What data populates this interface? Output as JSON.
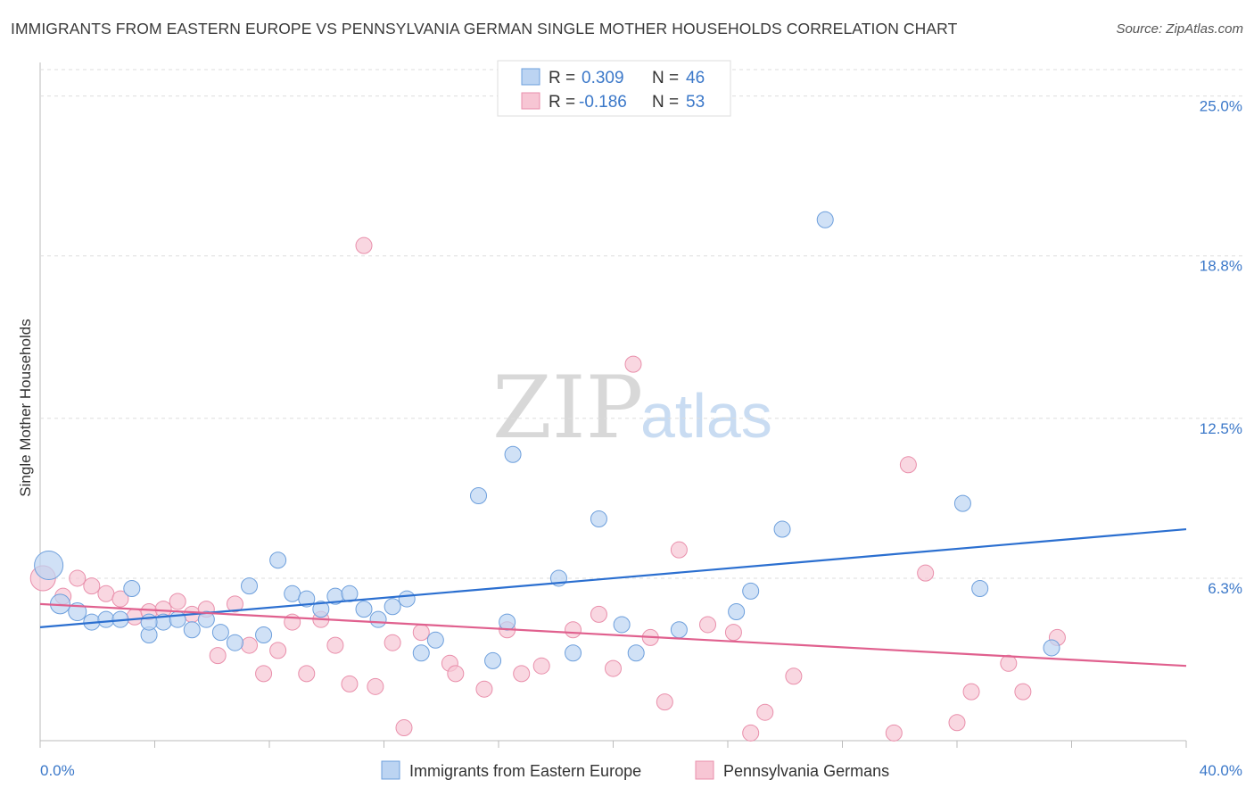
{
  "header": {
    "title": "IMMIGRANTS FROM EASTERN EUROPE VS PENNSYLVANIA GERMAN SINGLE MOTHER HOUSEHOLDS CORRELATION CHART",
    "source": "Source: ZipAtlas.com"
  },
  "watermark": {
    "zip": "ZIP",
    "atlas": "atlas"
  },
  "legend": {
    "rows": [
      {
        "r_label": "R = ",
        "r_value": "0.309",
        "n_label": "N = ",
        "n_value": "46"
      },
      {
        "r_label": "R = ",
        "r_value": "-0.186",
        "n_label": "N = ",
        "n_value": "53"
      }
    ]
  },
  "bottom_legend": {
    "items": [
      {
        "label": "Immigrants from Eastern Europe"
      },
      {
        "label": "Pennsylvania Germans"
      }
    ]
  },
  "colors": {
    "blue_fill": "#bcd4f2",
    "blue_stroke": "#6d9fdc",
    "blue_line": "#2b6fd0",
    "pink_fill": "#f7c6d4",
    "pink_stroke": "#e98fab",
    "pink_line": "#e0608e",
    "grid": "#dddddd",
    "axis_text": "#3b78c9"
  },
  "chart_data": {
    "type": "scatter",
    "title": "IMMIGRANTS FROM EASTERN EUROPE VS PENNSYLVANIA GERMAN SINGLE MOTHER HOUSEHOLDS CORRELATION CHART",
    "xlabel": "",
    "ylabel": "Single Mother Households",
    "xlim": [
      0,
      40
    ],
    "ylim": [
      0,
      26.3
    ],
    "x_tick_labels": [
      "0.0%",
      "40.0%"
    ],
    "y_ticks": [
      6.3,
      12.5,
      18.8,
      25.0
    ],
    "y_tick_labels": [
      "6.3%",
      "12.5%",
      "18.8%",
      "25.0%"
    ],
    "series": [
      {
        "name": "Immigrants from Eastern Europe",
        "color": "blue",
        "trend": {
          "x": [
            0,
            40
          ],
          "y": [
            4.4,
            8.2
          ]
        },
        "points": [
          {
            "x": 0.3,
            "y": 6.8,
            "s": 16
          },
          {
            "x": 0.7,
            "y": 5.3,
            "s": 11
          },
          {
            "x": 1.3,
            "y": 5.0,
            "s": 10
          },
          {
            "x": 1.8,
            "y": 4.6,
            "s": 9
          },
          {
            "x": 2.3,
            "y": 4.7,
            "s": 9
          },
          {
            "x": 2.8,
            "y": 4.7,
            "s": 9
          },
          {
            "x": 3.2,
            "y": 5.9,
            "s": 9
          },
          {
            "x": 3.8,
            "y": 4.1,
            "s": 9
          },
          {
            "x": 4.3,
            "y": 4.6,
            "s": 9
          },
          {
            "x": 4.8,
            "y": 4.7,
            "s": 9
          },
          {
            "x": 5.3,
            "y": 4.3,
            "s": 9
          },
          {
            "x": 5.8,
            "y": 4.7,
            "s": 9
          },
          {
            "x": 6.3,
            "y": 4.2,
            "s": 9
          },
          {
            "x": 6.8,
            "y": 3.8,
            "s": 9
          },
          {
            "x": 7.3,
            "y": 6.0,
            "s": 9
          },
          {
            "x": 7.8,
            "y": 4.1,
            "s": 9
          },
          {
            "x": 8.3,
            "y": 7.0,
            "s": 9
          },
          {
            "x": 8.8,
            "y": 5.7,
            "s": 9
          },
          {
            "x": 9.3,
            "y": 5.5,
            "s": 9
          },
          {
            "x": 9.8,
            "y": 5.1,
            "s": 9
          },
          {
            "x": 10.3,
            "y": 5.6,
            "s": 9
          },
          {
            "x": 10.8,
            "y": 5.7,
            "s": 9
          },
          {
            "x": 11.3,
            "y": 5.1,
            "s": 9
          },
          {
            "x": 11.8,
            "y": 4.7,
            "s": 9
          },
          {
            "x": 12.3,
            "y": 5.2,
            "s": 9
          },
          {
            "x": 12.8,
            "y": 5.5,
            "s": 9
          },
          {
            "x": 13.3,
            "y": 3.4,
            "s": 9
          },
          {
            "x": 13.8,
            "y": 3.9,
            "s": 9
          },
          {
            "x": 15.3,
            "y": 9.5,
            "s": 9
          },
          {
            "x": 16.5,
            "y": 11.1,
            "s": 9
          },
          {
            "x": 15.8,
            "y": 3.1,
            "s": 9
          },
          {
            "x": 16.3,
            "y": 4.6,
            "s": 9
          },
          {
            "x": 18.1,
            "y": 6.3,
            "s": 9
          },
          {
            "x": 18.6,
            "y": 3.4,
            "s": 9
          },
          {
            "x": 19.5,
            "y": 8.6,
            "s": 9
          },
          {
            "x": 20.3,
            "y": 4.5,
            "s": 9
          },
          {
            "x": 20.8,
            "y": 3.4,
            "s": 9
          },
          {
            "x": 22.3,
            "y": 4.3,
            "s": 9
          },
          {
            "x": 24.3,
            "y": 5.0,
            "s": 9
          },
          {
            "x": 24.8,
            "y": 5.8,
            "s": 9
          },
          {
            "x": 25.9,
            "y": 8.2,
            "s": 9
          },
          {
            "x": 27.4,
            "y": 20.2,
            "s": 9
          },
          {
            "x": 32.2,
            "y": 9.2,
            "s": 9
          },
          {
            "x": 32.8,
            "y": 5.9,
            "s": 9
          },
          {
            "x": 35.3,
            "y": 3.6,
            "s": 9
          },
          {
            "x": 3.8,
            "y": 4.6,
            "s": 9
          }
        ]
      },
      {
        "name": "Pennsylvania Germans",
        "color": "pink",
        "trend": {
          "x": [
            0,
            40
          ],
          "y": [
            5.3,
            2.9
          ]
        },
        "points": [
          {
            "x": 0.1,
            "y": 6.3,
            "s": 14
          },
          {
            "x": 0.8,
            "y": 5.6,
            "s": 9
          },
          {
            "x": 1.3,
            "y": 6.3,
            "s": 9
          },
          {
            "x": 1.8,
            "y": 6.0,
            "s": 9
          },
          {
            "x": 2.3,
            "y": 5.7,
            "s": 9
          },
          {
            "x": 2.8,
            "y": 5.5,
            "s": 9
          },
          {
            "x": 3.3,
            "y": 4.8,
            "s": 9
          },
          {
            "x": 3.8,
            "y": 5.0,
            "s": 9
          },
          {
            "x": 4.3,
            "y": 5.1,
            "s": 9
          },
          {
            "x": 4.8,
            "y": 5.4,
            "s": 9
          },
          {
            "x": 5.3,
            "y": 4.9,
            "s": 9
          },
          {
            "x": 5.8,
            "y": 5.1,
            "s": 9
          },
          {
            "x": 6.2,
            "y": 3.3,
            "s": 9
          },
          {
            "x": 6.8,
            "y": 5.3,
            "s": 9
          },
          {
            "x": 7.3,
            "y": 3.7,
            "s": 9
          },
          {
            "x": 7.8,
            "y": 2.6,
            "s": 9
          },
          {
            "x": 8.3,
            "y": 3.5,
            "s": 9
          },
          {
            "x": 8.8,
            "y": 4.6,
            "s": 9
          },
          {
            "x": 9.3,
            "y": 2.6,
            "s": 9
          },
          {
            "x": 9.8,
            "y": 4.7,
            "s": 9
          },
          {
            "x": 10.3,
            "y": 3.7,
            "s": 9
          },
          {
            "x": 10.8,
            "y": 2.2,
            "s": 9
          },
          {
            "x": 11.3,
            "y": 19.2,
            "s": 9
          },
          {
            "x": 11.7,
            "y": 2.1,
            "s": 9
          },
          {
            "x": 12.3,
            "y": 3.8,
            "s": 9
          },
          {
            "x": 12.7,
            "y": 0.5,
            "s": 9
          },
          {
            "x": 13.3,
            "y": 4.2,
            "s": 9
          },
          {
            "x": 14.3,
            "y": 3.0,
            "s": 9
          },
          {
            "x": 14.5,
            "y": 2.6,
            "s": 9
          },
          {
            "x": 15.5,
            "y": 2.0,
            "s": 9
          },
          {
            "x": 16.3,
            "y": 4.3,
            "s": 9
          },
          {
            "x": 16.8,
            "y": 2.6,
            "s": 9
          },
          {
            "x": 17.5,
            "y": 2.9,
            "s": 9
          },
          {
            "x": 18.6,
            "y": 4.3,
            "s": 9
          },
          {
            "x": 19.5,
            "y": 4.9,
            "s": 9
          },
          {
            "x": 20.0,
            "y": 2.8,
            "s": 9
          },
          {
            "x": 20.7,
            "y": 14.6,
            "s": 9
          },
          {
            "x": 21.3,
            "y": 4.0,
            "s": 9
          },
          {
            "x": 21.8,
            "y": 1.5,
            "s": 9
          },
          {
            "x": 22.3,
            "y": 7.4,
            "s": 9
          },
          {
            "x": 23.3,
            "y": 4.5,
            "s": 9
          },
          {
            "x": 24.2,
            "y": 4.2,
            "s": 9
          },
          {
            "x": 24.8,
            "y": 0.3,
            "s": 9
          },
          {
            "x": 25.3,
            "y": 1.1,
            "s": 9
          },
          {
            "x": 26.3,
            "y": 2.5,
            "s": 9
          },
          {
            "x": 29.8,
            "y": 0.3,
            "s": 9
          },
          {
            "x": 30.3,
            "y": 10.7,
            "s": 9
          },
          {
            "x": 30.9,
            "y": 6.5,
            "s": 9
          },
          {
            "x": 32.0,
            "y": 0.7,
            "s": 9
          },
          {
            "x": 32.5,
            "y": 1.9,
            "s": 9
          },
          {
            "x": 33.8,
            "y": 3.0,
            "s": 9
          },
          {
            "x": 34.3,
            "y": 1.9,
            "s": 9
          },
          {
            "x": 35.5,
            "y": 4.0,
            "s": 9
          }
        ]
      }
    ]
  }
}
